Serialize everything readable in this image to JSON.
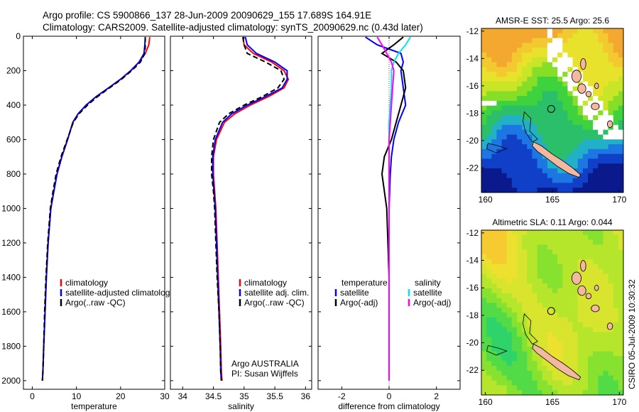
{
  "title": {
    "line1": "Argo profile: CS 5900866_137 28-Jun-2009 20090629_155 17.689S 164.91E",
    "line2": "Climatology: CARS2009. Satellite-adjusted climatology: synTS_20090629.nc (0.43d later)"
  },
  "credit": "CSIRO 05-Jul-2009 10:30:32",
  "colors": {
    "climatology": "#ff0000",
    "satellite": "#0000ff",
    "argo": "#000000",
    "satellite_diff": "#00e5ee",
    "argo_adj_diff": "#ff00ff",
    "land": "#f2b8a0"
  },
  "chart_data": [
    {
      "type": "line",
      "id": "temperature",
      "xlabel": "temperature",
      "xlim": [
        -2,
        30
      ],
      "xticks": [
        0,
        10,
        20,
        30
      ],
      "ylim": [
        0,
        2050
      ],
      "yticks": [
        0,
        200,
        400,
        600,
        800,
        1000,
        1200,
        1400,
        1600,
        1800,
        2000
      ],
      "legend": {
        "placement": "lower-right",
        "entries": [
          "climatology",
          "satellite-adjusted climatology",
          "Argo(..raw -QC)"
        ]
      },
      "series": [
        {
          "name": "climatology",
          "color": "#ff0000",
          "dash": false,
          "x": [
            26.6,
            26.4,
            25.6,
            24.2,
            22.3,
            20,
            17.3,
            14.5,
            12.2,
            10.4,
            9.2,
            8,
            6.7,
            5.6,
            4.9,
            4.2,
            3.6,
            3.2,
            2.9,
            2.6,
            2.4,
            2.3
          ],
          "y": [
            5,
            50,
            100,
            150,
            200,
            250,
            300,
            350,
            400,
            450,
            500,
            600,
            700,
            800,
            900,
            1000,
            1200,
            1400,
            1600,
            1800,
            1950,
            2000
          ]
        },
        {
          "name": "satellite-adjusted climatology",
          "color": "#0000ff",
          "dash": false,
          "x": [
            25.6,
            25.5,
            25.3,
            24.2,
            22.3,
            20,
            17.3,
            14.5,
            12.2,
            10.4,
            9.2,
            8,
            6.7,
            5.6,
            4.9,
            4.2,
            3.6,
            3.2,
            2.9,
            2.6,
            2.4,
            2.3
          ],
          "y": [
            5,
            50,
            100,
            150,
            200,
            250,
            300,
            350,
            400,
            450,
            500,
            600,
            700,
            800,
            900,
            1000,
            1200,
            1400,
            1600,
            1800,
            1950,
            2000
          ]
        },
        {
          "name": "Argo(..raw -QC)",
          "color": "#000000",
          "dash": true,
          "x": [
            25.6,
            25.6,
            25.5,
            24.5,
            22.5,
            20.2,
            17.5,
            14.8,
            12.5,
            10.6,
            9.3,
            7.9,
            6.5,
            5.4,
            4.7,
            4.1,
            3.5,
            3.1,
            2.8,
            2.6,
            2.4,
            2.3
          ],
          "y": [
            5,
            50,
            100,
            150,
            200,
            250,
            300,
            350,
            400,
            450,
            500,
            600,
            700,
            800,
            900,
            1000,
            1200,
            1400,
            1600,
            1800,
            1950,
            2000
          ]
        }
      ]
    },
    {
      "type": "line",
      "id": "salinity",
      "xlabel": "salinity",
      "xlim": [
        33.8,
        36.1
      ],
      "xticks": [
        34,
        34.5,
        35,
        35.5,
        36
      ],
      "ylim": [
        0,
        2050
      ],
      "legend": {
        "placement": "lower-right",
        "entries": [
          "climatology",
          "satellite adj. clim.",
          "Argo(..raw -QC)"
        ]
      },
      "annotation": [
        "Argo AUSTRALIA",
        "PI: Susan Wijffels"
      ],
      "series": [
        {
          "name": "climatology",
          "color": "#ff0000",
          "dash": false,
          "x": [
            34.98,
            35,
            35.15,
            35.45,
            35.65,
            35.72,
            35.65,
            35.4,
            35.1,
            34.85,
            34.68,
            34.55,
            34.5,
            34.5,
            34.52,
            34.54,
            34.56,
            34.58,
            34.6,
            34.62,
            34.63,
            34.64
          ],
          "y": [
            5,
            50,
            100,
            150,
            200,
            250,
            300,
            350,
            400,
            450,
            500,
            600,
            700,
            800,
            900,
            1000,
            1200,
            1400,
            1600,
            1800,
            1950,
            2000
          ]
        },
        {
          "name": "satellite adj. clim.",
          "color": "#0000ff",
          "dash": false,
          "x": [
            35.02,
            35.05,
            35.2,
            35.5,
            35.7,
            35.7,
            35.62,
            35.35,
            35.05,
            34.8,
            34.65,
            34.53,
            34.49,
            34.49,
            34.51,
            34.53,
            34.55,
            34.57,
            34.59,
            34.61,
            34.62,
            34.63
          ],
          "y": [
            5,
            50,
            100,
            150,
            200,
            250,
            300,
            350,
            400,
            450,
            500,
            600,
            700,
            800,
            900,
            1000,
            1200,
            1400,
            1600,
            1800,
            1950,
            2000
          ]
        },
        {
          "name": "Argo(..raw -QC)",
          "color": "#000000",
          "dash": true,
          "x": [
            34.98,
            35.0,
            35.05,
            35.35,
            35.6,
            35.65,
            35.55,
            35.3,
            35.0,
            34.75,
            34.6,
            34.5,
            34.47,
            34.47,
            34.5,
            34.52,
            34.54,
            34.56,
            34.59,
            34.61,
            34.62,
            34.63
          ],
          "y": [
            5,
            50,
            100,
            150,
            200,
            250,
            300,
            350,
            400,
            450,
            500,
            600,
            700,
            800,
            900,
            1000,
            1200,
            1400,
            1600,
            1800,
            1950,
            2000
          ]
        }
      ]
    },
    {
      "type": "line",
      "id": "difference",
      "xlabel": "difference from climatology",
      "xlim": [
        -3,
        3
      ],
      "xticks": [
        -2,
        0,
        2
      ],
      "ylim": [
        0,
        2050
      ],
      "legend": {
        "placement": "lower",
        "groups": [
          {
            "header": "temperature",
            "entries": [
              "satellite",
              "Argo(-adj)"
            ]
          },
          {
            "header": "salinity",
            "entries": [
              "satellite",
              "Argo(-adj)"
            ]
          }
        ]
      },
      "series": [
        {
          "name": "temperature satellite",
          "color": "#0000ff",
          "dash": false,
          "x": [
            -1,
            -0.5,
            0.5,
            0.6,
            0.5,
            0.6,
            0.7,
            0.4,
            0.2,
            0.1,
            0.05,
            0,
            0,
            0,
            0
          ],
          "y": [
            5,
            50,
            100,
            150,
            200,
            300,
            400,
            500,
            600,
            700,
            800,
            1000,
            1400,
            1800,
            2000
          ]
        },
        {
          "name": "temperature Argo(-adj)",
          "color": "#000000",
          "dash": false,
          "x": [
            0.6,
            0.2,
            -0.3,
            0.3,
            0.6,
            0.7,
            0.5,
            0.3,
            0.1,
            -0.2,
            -0.3,
            -0.1,
            0,
            0,
            0
          ],
          "y": [
            5,
            50,
            100,
            150,
            200,
            300,
            400,
            500,
            600,
            700,
            800,
            1000,
            1400,
            1800,
            2000
          ]
        },
        {
          "name": "salinity satellite",
          "color": "#00e5ee",
          "dash": false,
          "x": [
            0.9,
            0.7,
            0.4,
            0.2,
            0.1,
            0.1,
            0.05,
            0,
            0,
            0,
            0,
            0,
            0,
            0,
            0
          ],
          "y": [
            5,
            50,
            100,
            150,
            200,
            300,
            400,
            500,
            600,
            700,
            800,
            1000,
            1400,
            1800,
            2000
          ]
        },
        {
          "name": "salinity Argo(-adj)",
          "color": "#ff00ff",
          "dash": false,
          "x": [
            -0.5,
            -0.3,
            -0.1,
            0.1,
            0.2,
            0.15,
            0.1,
            0.05,
            0,
            0,
            0,
            0,
            0,
            0,
            0
          ],
          "y": [
            5,
            50,
            100,
            150,
            200,
            300,
            400,
            500,
            600,
            700,
            800,
            1000,
            1400,
            1800,
            2000
          ]
        }
      ]
    },
    {
      "type": "heatmap",
      "id": "sst-map",
      "title": "AMSR-E SST: 25.5 Argo: 25.6",
      "xlim": [
        159.7,
        170.3
      ],
      "ylim": [
        -23.8,
        -11.8
      ],
      "xticks": [
        160,
        165,
        170
      ],
      "yticks": [
        -12,
        -14,
        -16,
        -18,
        -20,
        -22
      ],
      "marker": {
        "lon": 164.91,
        "lat": -17.689
      }
    },
    {
      "type": "heatmap",
      "id": "sla-map",
      "title": "Altimetric SLA: 0.11 Argo: 0.044",
      "xlim": [
        159.7,
        170.3
      ],
      "ylim": [
        -23.8,
        -11.8
      ],
      "xticks": [
        160,
        165,
        170
      ],
      "yticks": [
        -12,
        -14,
        -16,
        -18,
        -20,
        -22
      ],
      "marker": {
        "lon": 164.91,
        "lat": -17.689
      }
    }
  ]
}
